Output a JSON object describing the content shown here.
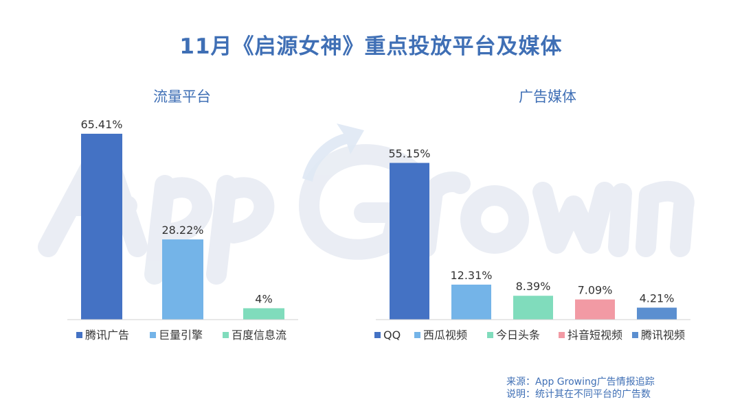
{
  "title": "11月《启源女神》重点投放平台及媒体",
  "watermark_text": "App Growing",
  "footer": {
    "source": "来源：App Growing广告情报追踪",
    "note": "说明：统计其在不同平台的广告数"
  },
  "chart_data": [
    {
      "type": "bar",
      "title": "流量平台",
      "categories": [
        "腾讯广告",
        "巨量引擎",
        "百度信息流"
      ],
      "values": [
        65.41,
        28.22,
        4
      ],
      "value_labels": [
        "65.41%",
        "28.22%",
        "4%"
      ],
      "colors": [
        "#4472c4",
        "#74b4e8",
        "#80dcbc"
      ],
      "ylim": [
        0,
        70
      ],
      "grid": false,
      "legend_position": "bottom"
    },
    {
      "type": "bar",
      "title": "广告媒体",
      "categories": [
        "QQ",
        "西瓜视频",
        "今日头条",
        "抖音短视频",
        "腾讯视频"
      ],
      "values": [
        55.15,
        12.31,
        8.39,
        7.09,
        4.21
      ],
      "value_labels": [
        "55.15%",
        "12.31%",
        "8.39%",
        "7.09%",
        "4.21%"
      ],
      "colors": [
        "#4472c4",
        "#74b4e8",
        "#80dcbc",
        "#f29aa4",
        "#5b8fd0"
      ],
      "ylim": [
        0,
        70
      ],
      "grid": false,
      "legend_position": "bottom"
    }
  ]
}
